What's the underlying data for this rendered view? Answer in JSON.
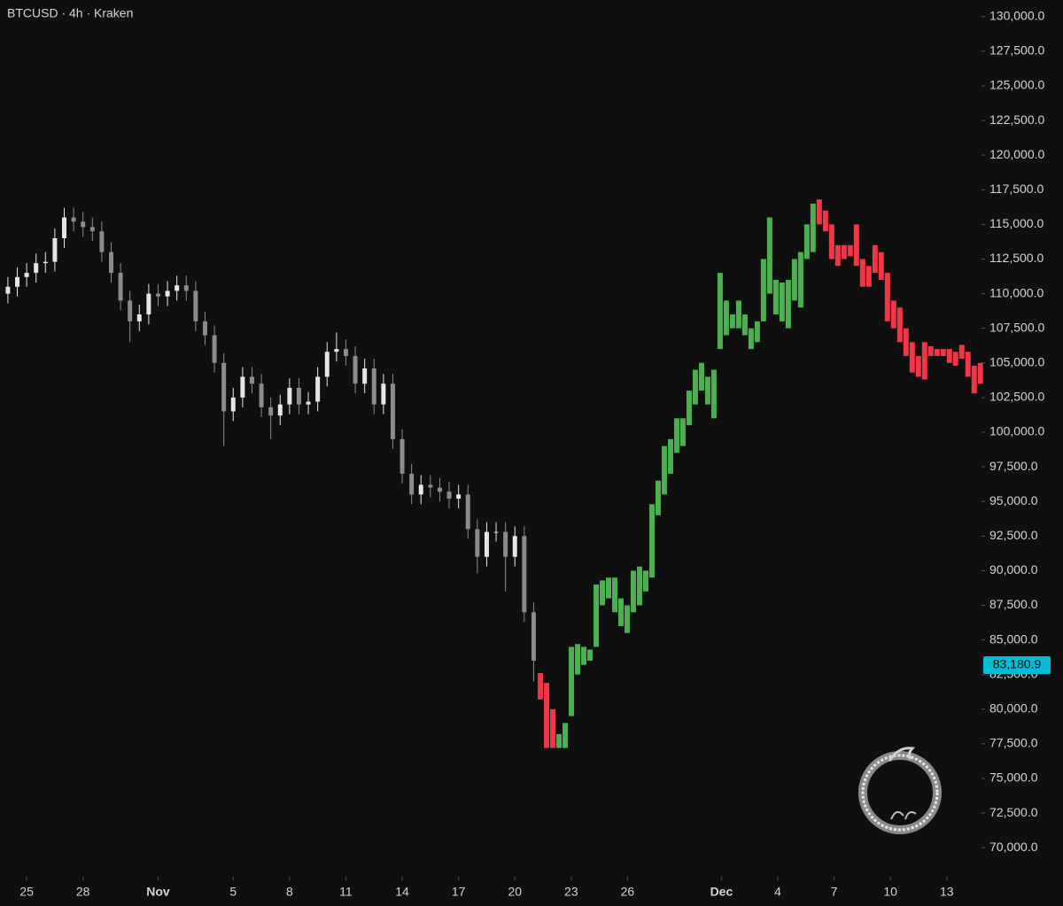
{
  "chart_data": {
    "type": "candlestick",
    "title": "BTCUSD · 4h · Kraken",
    "up_color": "#e6e6e6",
    "down_color": "#8c8c8c",
    "x": [
      -1,
      -0.5,
      0,
      0.5,
      1,
      1.5,
      2,
      2.5,
      3,
      3.5,
      4,
      4.5,
      5,
      5.5,
      6,
      6.5,
      7,
      7.5,
      8,
      8.5,
      9,
      9.5,
      10,
      10.5,
      11,
      11.5,
      12,
      12.5,
      13,
      13.5,
      14,
      14.5,
      15,
      15.5,
      16,
      16.5,
      17,
      17.5,
      18,
      18.5,
      19,
      19.5,
      20,
      20.5,
      21,
      21.5,
      22,
      22.5,
      23,
      23.5,
      24,
      24.5,
      25,
      25.5,
      26,
      26.5,
      27
    ],
    "open": [
      110000,
      110500,
      111200,
      111500,
      112200,
      112300,
      114000,
      115500,
      115200,
      114800,
      114500,
      113000,
      111500,
      109500,
      108000,
      108500,
      110000,
      109800,
      110200,
      110600,
      110200,
      108000,
      107000,
      105000,
      101500,
      102500,
      104000,
      103500,
      101800,
      101200,
      102000,
      103200,
      102000,
      102200,
      104000,
      105800,
      106000,
      105500,
      103500,
      104600,
      102000,
      103500,
      99500,
      97000,
      95500,
      96200,
      96000,
      95700,
      95200,
      95500,
      93000,
      91000,
      92800,
      92800,
      91000,
      92500,
      87000
    ],
    "high": [
      111200,
      111900,
      112200,
      112900,
      113000,
      114700,
      116200,
      116200,
      115900,
      115500,
      115200,
      113700,
      112200,
      110200,
      109200,
      110700,
      110700,
      110900,
      111300,
      111300,
      110900,
      108700,
      107700,
      105700,
      103200,
      104700,
      104700,
      104200,
      102500,
      102700,
      103900,
      103900,
      102900,
      104700,
      106500,
      107200,
      106700,
      106200,
      105300,
      105300,
      104200,
      104200,
      100200,
      97700,
      96900,
      96900,
      96700,
      96400,
      96200,
      96200,
      93700,
      93500,
      93500,
      93500,
      93200,
      93200,
      87700
    ],
    "low": [
      109300,
      109800,
      110500,
      110800,
      111500,
      111600,
      113300,
      114500,
      114100,
      113800,
      112300,
      110800,
      108800,
      106500,
      107300,
      107800,
      109100,
      109100,
      109500,
      109500,
      107300,
      106300,
      104300,
      99000,
      100800,
      101800,
      102800,
      101100,
      99500,
      100500,
      101300,
      101300,
      101300,
      101500,
      103300,
      105100,
      104800,
      102800,
      102800,
      101300,
      101300,
      98800,
      96300,
      94800,
      94800,
      95300,
      95000,
      94500,
      94500,
      92300,
      89800,
      90300,
      92100,
      88500,
      90300,
      86300,
      82000
    ],
    "close": [
      110500,
      111200,
      111500,
      112200,
      112300,
      114000,
      115500,
      115200,
      114800,
      114500,
      113000,
      111500,
      109500,
      108000,
      108500,
      110000,
      109800,
      110200,
      110600,
      110200,
      108000,
      107000,
      105000,
      101500,
      102500,
      104000,
      103500,
      101800,
      101200,
      102000,
      103200,
      102000,
      102200,
      104000,
      105800,
      106000,
      105500,
      103500,
      104600,
      102000,
      103500,
      99500,
      97000,
      95500,
      96200,
      96000,
      95700,
      95200,
      95500,
      93000,
      91000,
      92800,
      92800,
      91000,
      92500,
      87000,
      83500
    ],
    "series": [
      {
        "color": "#f23645",
        "x": [
          27.36,
          27.69,
          28.02,
          42.21,
          42.54,
          42.87,
          43.2,
          43.53,
          43.86,
          44.19,
          44.52,
          44.85,
          45.18,
          45.51,
          45.84,
          46.17,
          46.5,
          46.83,
          47.16,
          47.49,
          47.82,
          48.15,
          48.48,
          48.81,
          49.14,
          49.47,
          49.8,
          50.13,
          50.46,
          50.79
        ],
        "low": [
          80700,
          77200,
          77200,
          115000,
          114500,
          112500,
          112000,
          112500,
          112700,
          112000,
          110500,
          110500,
          111500,
          111000,
          108000,
          107500,
          106500,
          105500,
          104300,
          104000,
          103800,
          105500,
          105500,
          105500,
          105000,
          104800,
          105300,
          104000,
          102800,
          103500
        ],
        "high": [
          82600,
          81900,
          80000,
          116800,
          116000,
          115000,
          113500,
          113500,
          113500,
          115000,
          112500,
          112000,
          113500,
          113000,
          111500,
          109500,
          109000,
          107500,
          106500,
          105500,
          106500,
          106200,
          106000,
          106000,
          106000,
          105800,
          106300,
          105800,
          104800,
          105000
        ]
      },
      {
        "color": "#4caf50",
        "x": [
          28.35,
          28.68,
          29.01,
          29.34,
          29.67,
          30.0,
          30.33,
          30.66,
          30.99,
          31.32,
          31.65,
          31.98,
          32.31,
          32.64,
          32.97,
          33.3,
          33.63,
          33.96,
          34.29,
          34.62,
          34.95,
          35.28,
          35.61,
          35.94,
          36.27,
          36.6,
          36.93,
          37.26,
          37.59,
          37.92,
          38.25,
          38.58,
          38.91,
          39.24,
          39.57,
          39.9,
          40.23,
          40.56,
          40.89,
          41.22,
          41.55,
          41.88
        ],
        "low": [
          77200,
          77200,
          79500,
          82500,
          83200,
          83500,
          84500,
          87500,
          88000,
          87000,
          86000,
          85500,
          87000,
          87500,
          88500,
          89500,
          94000,
          95500,
          97000,
          98500,
          99000,
          100500,
          102000,
          103000,
          102000,
          101000,
          106000,
          107000,
          107500,
          107500,
          107000,
          106000,
          106500,
          108000,
          110000,
          108500,
          108000,
          107500,
          109500,
          109000,
          112500,
          113000
        ],
        "high": [
          78200,
          79000,
          84500,
          84700,
          84500,
          84300,
          89000,
          89300,
          89500,
          89500,
          88000,
          87500,
          90000,
          90300,
          90000,
          94800,
          96500,
          99000,
          99500,
          101000,
          101000,
          103000,
          104500,
          105000,
          104000,
          104500,
          111500,
          109500,
          108500,
          109500,
          108500,
          107500,
          108000,
          112500,
          115500,
          111000,
          110800,
          111000,
          112500,
          113000,
          115000,
          116500
        ]
      }
    ],
    "xlim": [
      -1.42,
      50.85
    ],
    "ylim": [
      67900,
      131200
    ],
    "xticks": [
      {
        "value": 0,
        "label": "25"
      },
      {
        "value": 3,
        "label": "28"
      },
      {
        "value": 7,
        "label": "Nov"
      },
      {
        "value": 11,
        "label": "5"
      },
      {
        "value": 14,
        "label": "8"
      },
      {
        "value": 17,
        "label": "11"
      },
      {
        "value": 20,
        "label": "14"
      },
      {
        "value": 23,
        "label": "17"
      },
      {
        "value": 26,
        "label": "20"
      },
      {
        "value": 29,
        "label": "23"
      },
      {
        "value": 32,
        "label": "26"
      },
      {
        "value": 37,
        "label": "Dec"
      },
      {
        "value": 40,
        "label": "4"
      },
      {
        "value": 43,
        "label": "7"
      },
      {
        "value": 46,
        "label": "10"
      },
      {
        "value": 49,
        "label": "13"
      }
    ],
    "yticks": [
      {
        "value": 70000,
        "label": "70,000.0"
      },
      {
        "value": 72500,
        "label": "72,500.0"
      },
      {
        "value": 75000,
        "label": "75,000.0"
      },
      {
        "value": 77500,
        "label": "77,500.0"
      },
      {
        "value": 80000,
        "label": "80,000.0"
      },
      {
        "value": 82500,
        "label": "82,500.0"
      },
      {
        "value": 85000,
        "label": "85,000.0"
      },
      {
        "value": 87500,
        "label": "87,500.0"
      },
      {
        "value": 90000,
        "label": "90,000.0"
      },
      {
        "value": 92500,
        "label": "92,500.0"
      },
      {
        "value": 95000,
        "label": "95,000.0"
      },
      {
        "value": 97500,
        "label": "97,500.0"
      },
      {
        "value": 100000,
        "label": "100,000.0"
      },
      {
        "value": 102500,
        "label": "102,500.0"
      },
      {
        "value": 105000,
        "label": "105,000.0"
      },
      {
        "value": 107500,
        "label": "107,500.0"
      },
      {
        "value": 110000,
        "label": "110,000.0"
      },
      {
        "value": 112500,
        "label": "112,500.0"
      },
      {
        "value": 115000,
        "label": "115,000.0"
      },
      {
        "value": 117500,
        "label": "117,500.0"
      },
      {
        "value": 120000,
        "label": "120,000.0"
      },
      {
        "value": 122500,
        "label": "122,500.0"
      },
      {
        "value": 125000,
        "label": "125,000.0"
      },
      {
        "value": 127500,
        "label": "127,500.0"
      },
      {
        "value": 130000,
        "label": "130,000.0"
      }
    ],
    "bold_xticks": [
      "Nov",
      "Dec"
    ],
    "last_price": {
      "value": 83180.9,
      "label": "83,180.9",
      "color": "#00bcd4"
    }
  }
}
